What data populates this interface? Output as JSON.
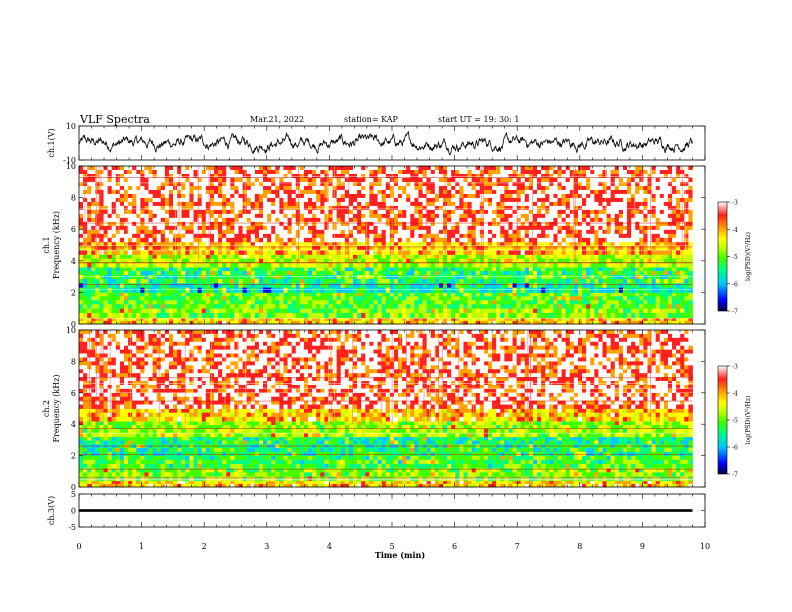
{
  "header": {
    "title": "VLF Spectra",
    "date": "Mar.21, 2022",
    "station": "station= KAP",
    "start": "start  UT =   19: 30: 1"
  },
  "chart_data": [
    {
      "type": "line",
      "name": "ch1-waveform",
      "ylabel": "ch.1(V)",
      "ylim": [
        -10,
        10
      ],
      "yticks": [
        "10",
        "-10"
      ],
      "xlim": [
        0,
        10
      ],
      "xrange_data": [
        0,
        9.8
      ],
      "amplitude_band": [
        -7,
        7
      ],
      "color": "#000000"
    },
    {
      "type": "heatmap",
      "name": "ch1-spectrogram",
      "ylabel": "ch.1\nFrequency (kHz)",
      "ylim": [
        0,
        10
      ],
      "yticks": [
        "0",
        "2",
        "4",
        "6",
        "8",
        "10"
      ],
      "xlim": [
        0,
        10
      ],
      "xrange_data": [
        0,
        9.8
      ],
      "colorbar": {
        "label": "log(PSD)(V²/Hz)",
        "range": [
          -7,
          -3
        ],
        "ticks": [
          "-3",
          "-4",
          "-5",
          "-6",
          "-7"
        ]
      },
      "bands_khz": [
        {
          "from": 0.0,
          "to": 0.4,
          "level": -4.2
        },
        {
          "from": 0.4,
          "to": 1.0,
          "level": -5.0
        },
        {
          "from": 1.0,
          "to": 2.0,
          "level": -5.2
        },
        {
          "from": 2.0,
          "to": 2.6,
          "level": -5.7
        },
        {
          "from": 2.6,
          "to": 3.6,
          "level": -5.4
        },
        {
          "from": 3.6,
          "to": 4.4,
          "level": -4.8
        },
        {
          "from": 4.4,
          "to": 5.2,
          "level": -4.1
        },
        {
          "from": 5.2,
          "to": 10.0,
          "level": -3.5
        }
      ]
    },
    {
      "type": "heatmap",
      "name": "ch2-spectrogram",
      "ylabel": "ch.2\nFrequency (kHz)",
      "ylim": [
        0,
        10
      ],
      "yticks": [
        "0",
        "2",
        "4",
        "6",
        "8",
        "10"
      ],
      "xlim": [
        0,
        10
      ],
      "xrange_data": [
        0,
        9.8
      ],
      "colorbar": {
        "label": "log(PSD)(V²/Hz)",
        "range": [
          -7,
          -3
        ],
        "ticks": [
          "-3",
          "-4",
          "-5",
          "-6",
          "-7"
        ]
      },
      "bands_khz": [
        {
          "from": 0.0,
          "to": 0.4,
          "level": -4.2
        },
        {
          "from": 0.4,
          "to": 1.2,
          "level": -5.0
        },
        {
          "from": 1.2,
          "to": 2.0,
          "level": -5.3
        },
        {
          "from": 2.0,
          "to": 3.2,
          "level": -5.5
        },
        {
          "from": 3.2,
          "to": 4.2,
          "level": -4.9
        },
        {
          "from": 4.2,
          "to": 5.0,
          "level": -4.2
        },
        {
          "from": 5.0,
          "to": 10.0,
          "level": -3.5
        }
      ]
    },
    {
      "type": "line",
      "name": "ch3-waveform",
      "ylabel": "ch.3(V)",
      "ylim": [
        -5,
        5
      ],
      "yticks": [
        "5",
        "0",
        "-5"
      ],
      "xlim": [
        0,
        10
      ],
      "xrange_data": [
        0,
        9.8
      ],
      "amplitude_band": [
        -0.4,
        0.4
      ],
      "color": "#000000"
    }
  ],
  "xaxis": {
    "label": "Time (min)",
    "ticks": [
      "0",
      "1",
      "2",
      "3",
      "4",
      "5",
      "6",
      "7",
      "8",
      "9",
      "10"
    ]
  },
  "colormap": [
    "#000080",
    "#0000ff",
    "#00c8ff",
    "#00ff80",
    "#40ff00",
    "#c0ff00",
    "#ffff00",
    "#ffa000",
    "#ff2020",
    "#ffffff"
  ]
}
